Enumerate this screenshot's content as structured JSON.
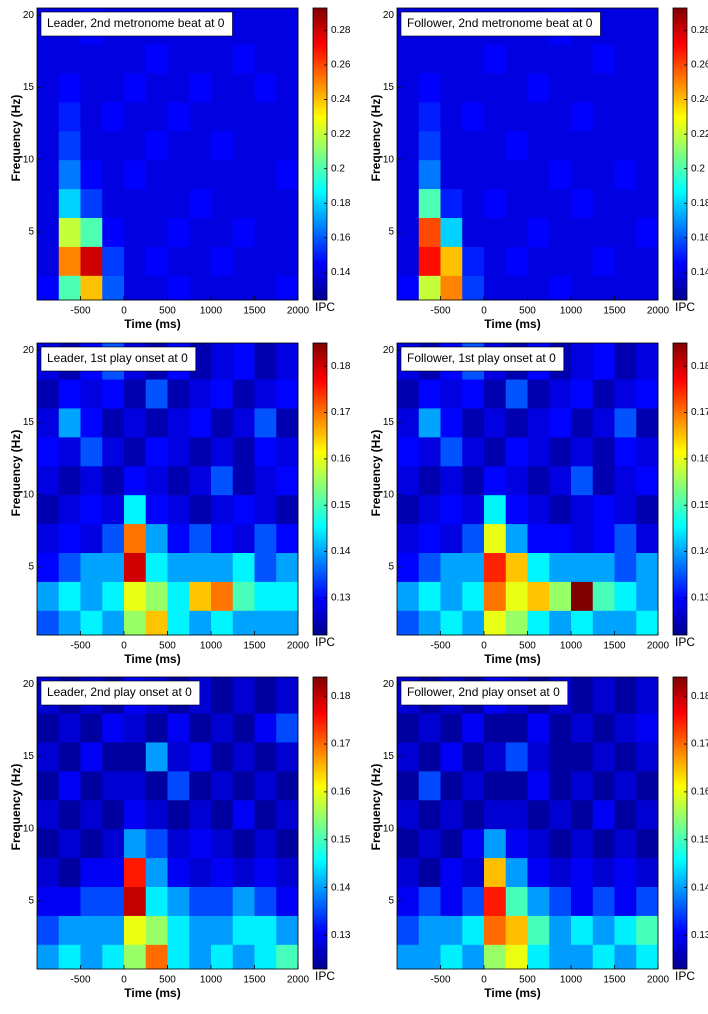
{
  "chart_data": [
    {
      "type": "heatmap",
      "title": "Leader, 2nd metronome beat at 0",
      "xlabel": "Time (ms)",
      "ylabel": "Frequency (Hz)",
      "colorbar_label": "IPC",
      "xlim": [
        -1000,
        2000
      ],
      "ylim": [
        0.3,
        20.5
      ],
      "xticks": [
        -500,
        0,
        500,
        1000,
        1500,
        2000
      ],
      "yticks": [
        5,
        10,
        15,
        20
      ],
      "clim": [
        0.124,
        0.293
      ],
      "cticks": [
        0.14,
        0.16,
        0.18,
        0.2,
        0.22,
        0.24,
        0.26,
        0.28
      ],
      "xbins": [
        -1000,
        -750,
        -500,
        -250,
        0,
        250,
        500,
        750,
        1000,
        1250,
        1500,
        1750,
        2000
      ],
      "ybins": [
        0.3,
        2,
        4,
        6,
        8,
        10,
        12,
        14,
        16,
        18,
        20.5
      ],
      "z": [
        [
          0.145,
          0.2,
          0.24,
          0.16,
          0.14,
          0.14,
          0.145,
          0.14,
          0.14,
          0.14,
          0.14,
          0.145
        ],
        [
          0.14,
          0.25,
          0.28,
          0.155,
          0.14,
          0.145,
          0.14,
          0.14,
          0.145,
          0.14,
          0.14,
          0.14
        ],
        [
          0.14,
          0.22,
          0.2,
          0.145,
          0.14,
          0.14,
          0.145,
          0.14,
          0.14,
          0.145,
          0.14,
          0.14
        ],
        [
          0.14,
          0.18,
          0.155,
          0.14,
          0.14,
          0.14,
          0.14,
          0.145,
          0.14,
          0.14,
          0.14,
          0.14
        ],
        [
          0.14,
          0.165,
          0.145,
          0.14,
          0.145,
          0.14,
          0.14,
          0.14,
          0.14,
          0.14,
          0.14,
          0.145
        ],
        [
          0.14,
          0.155,
          0.14,
          0.14,
          0.14,
          0.145,
          0.14,
          0.14,
          0.145,
          0.14,
          0.14,
          0.14
        ],
        [
          0.14,
          0.15,
          0.14,
          0.145,
          0.14,
          0.14,
          0.145,
          0.14,
          0.14,
          0.14,
          0.14,
          0.14
        ],
        [
          0.14,
          0.145,
          0.14,
          0.14,
          0.145,
          0.14,
          0.14,
          0.145,
          0.14,
          0.14,
          0.145,
          0.14
        ],
        [
          0.14,
          0.14,
          0.14,
          0.14,
          0.14,
          0.145,
          0.14,
          0.14,
          0.14,
          0.145,
          0.14,
          0.14
        ],
        [
          0.14,
          0.14,
          0.145,
          0.14,
          0.14,
          0.14,
          0.14,
          0.14,
          0.14,
          0.14,
          0.14,
          0.14
        ]
      ]
    },
    {
      "type": "heatmap",
      "title": "Follower, 2nd metronome beat at 0",
      "xlabel": "Time (ms)",
      "ylabel": "Frequency (Hz)",
      "colorbar_label": "IPC",
      "xlim": [
        -1000,
        2000
      ],
      "ylim": [
        0.3,
        20.5
      ],
      "xticks": [
        -500,
        0,
        500,
        1000,
        1500,
        2000
      ],
      "yticks": [
        5,
        10,
        15,
        20
      ],
      "clim": [
        0.124,
        0.293
      ],
      "cticks": [
        0.14,
        0.16,
        0.18,
        0.2,
        0.22,
        0.24,
        0.26,
        0.28
      ],
      "xbins": [
        -1000,
        -750,
        -500,
        -250,
        0,
        250,
        500,
        750,
        1000,
        1250,
        1500,
        1750,
        2000
      ],
      "ybins": [
        0.3,
        2,
        4,
        6,
        8,
        10,
        12,
        14,
        16,
        18,
        20.5
      ],
      "z": [
        [
          0.145,
          0.22,
          0.25,
          0.155,
          0.14,
          0.14,
          0.14,
          0.145,
          0.14,
          0.14,
          0.14,
          0.14
        ],
        [
          0.14,
          0.27,
          0.24,
          0.15,
          0.14,
          0.145,
          0.14,
          0.14,
          0.14,
          0.145,
          0.14,
          0.14
        ],
        [
          0.14,
          0.26,
          0.18,
          0.14,
          0.14,
          0.14,
          0.145,
          0.14,
          0.14,
          0.14,
          0.14,
          0.145
        ],
        [
          0.14,
          0.2,
          0.15,
          0.14,
          0.145,
          0.14,
          0.14,
          0.14,
          0.145,
          0.14,
          0.14,
          0.14
        ],
        [
          0.14,
          0.165,
          0.14,
          0.14,
          0.14,
          0.14,
          0.14,
          0.145,
          0.14,
          0.14,
          0.145,
          0.14
        ],
        [
          0.14,
          0.155,
          0.14,
          0.14,
          0.14,
          0.145,
          0.14,
          0.14,
          0.14,
          0.14,
          0.14,
          0.14
        ],
        [
          0.14,
          0.15,
          0.14,
          0.145,
          0.14,
          0.14,
          0.14,
          0.14,
          0.145,
          0.14,
          0.14,
          0.14
        ],
        [
          0.14,
          0.145,
          0.14,
          0.14,
          0.14,
          0.14,
          0.145,
          0.14,
          0.14,
          0.14,
          0.14,
          0.14
        ],
        [
          0.14,
          0.14,
          0.14,
          0.14,
          0.145,
          0.14,
          0.14,
          0.14,
          0.14,
          0.145,
          0.14,
          0.14
        ],
        [
          0.14,
          0.14,
          0.14,
          0.14,
          0.14,
          0.14,
          0.14,
          0.145,
          0.14,
          0.14,
          0.14,
          0.14
        ]
      ]
    },
    {
      "type": "heatmap",
      "title": "Leader, 1st play onset  at 0",
      "xlabel": "Time (ms)",
      "ylabel": "Frequency (Hz)",
      "colorbar_label": "IPC",
      "xlim": [
        -1000,
        2000
      ],
      "ylim": [
        0.3,
        20.5
      ],
      "xticks": [
        -500,
        0,
        500,
        1000,
        1500,
        2000
      ],
      "yticks": [
        5,
        10,
        15,
        20
      ],
      "clim": [
        0.122,
        0.185
      ],
      "cticks": [
        0.13,
        0.14,
        0.15,
        0.16,
        0.17,
        0.18
      ],
      "xbins": [
        -1000,
        -750,
        -500,
        -250,
        0,
        250,
        500,
        750,
        1000,
        1250,
        1500,
        1750,
        2000
      ],
      "ybins": [
        0.3,
        2,
        4,
        6,
        8,
        10,
        12,
        14,
        16,
        18,
        20.5
      ],
      "z": [
        [
          0.135,
          0.14,
          0.145,
          0.14,
          0.155,
          0.165,
          0.145,
          0.14,
          0.145,
          0.14,
          0.14,
          0.14
        ],
        [
          0.14,
          0.145,
          0.14,
          0.145,
          0.16,
          0.155,
          0.145,
          0.165,
          0.17,
          0.15,
          0.145,
          0.145
        ],
        [
          0.13,
          0.135,
          0.14,
          0.14,
          0.18,
          0.145,
          0.14,
          0.14,
          0.14,
          0.145,
          0.135,
          0.14
        ],
        [
          0.128,
          0.13,
          0.128,
          0.135,
          0.17,
          0.14,
          0.13,
          0.135,
          0.13,
          0.128,
          0.135,
          0.13
        ],
        [
          0.125,
          0.128,
          0.13,
          0.128,
          0.145,
          0.13,
          0.128,
          0.125,
          0.128,
          0.13,
          0.128,
          0.125
        ],
        [
          0.128,
          0.125,
          0.128,
          0.125,
          0.13,
          0.128,
          0.125,
          0.128,
          0.135,
          0.125,
          0.128,
          0.13
        ],
        [
          0.13,
          0.128,
          0.135,
          0.128,
          0.125,
          0.13,
          0.128,
          0.125,
          0.128,
          0.125,
          0.13,
          0.128
        ],
        [
          0.128,
          0.14,
          0.13,
          0.125,
          0.128,
          0.125,
          0.128,
          0.13,
          0.125,
          0.128,
          0.135,
          0.125
        ],
        [
          0.125,
          0.13,
          0.128,
          0.13,
          0.125,
          0.135,
          0.125,
          0.128,
          0.13,
          0.125,
          0.128,
          0.13
        ],
        [
          0.128,
          0.125,
          0.13,
          0.135,
          0.128,
          0.125,
          0.13,
          0.125,
          0.128,
          0.13,
          0.125,
          0.128
        ]
      ]
    },
    {
      "type": "heatmap",
      "title": "Follower, 1st play onset  at 0",
      "xlabel": "Time (ms)",
      "ylabel": "Frequency (Hz)",
      "colorbar_label": "IPC",
      "xlim": [
        -1000,
        2000
      ],
      "ylim": [
        0.3,
        20.5
      ],
      "xticks": [
        -500,
        0,
        500,
        1000,
        1500,
        2000
      ],
      "yticks": [
        5,
        10,
        15,
        20
      ],
      "clim": [
        0.122,
        0.185
      ],
      "cticks": [
        0.13,
        0.14,
        0.15,
        0.16,
        0.17,
        0.18
      ],
      "xbins": [
        -1000,
        -750,
        -500,
        -250,
        0,
        250,
        500,
        750,
        1000,
        1250,
        1500,
        1750,
        2000
      ],
      "ybins": [
        0.3,
        2,
        4,
        6,
        8,
        10,
        12,
        14,
        16,
        18,
        20.5
      ],
      "z": [
        [
          0.135,
          0.14,
          0.145,
          0.14,
          0.16,
          0.155,
          0.145,
          0.14,
          0.145,
          0.14,
          0.14,
          0.145
        ],
        [
          0.14,
          0.145,
          0.14,
          0.145,
          0.17,
          0.16,
          0.165,
          0.155,
          0.185,
          0.15,
          0.145,
          0.14
        ],
        [
          0.13,
          0.135,
          0.14,
          0.14,
          0.175,
          0.165,
          0.145,
          0.14,
          0.14,
          0.14,
          0.135,
          0.14
        ],
        [
          0.128,
          0.13,
          0.128,
          0.135,
          0.16,
          0.14,
          0.13,
          0.13,
          0.128,
          0.13,
          0.135,
          0.128
        ],
        [
          0.125,
          0.128,
          0.13,
          0.128,
          0.145,
          0.13,
          0.128,
          0.125,
          0.128,
          0.13,
          0.128,
          0.125
        ],
        [
          0.128,
          0.125,
          0.128,
          0.125,
          0.13,
          0.128,
          0.125,
          0.128,
          0.135,
          0.125,
          0.128,
          0.13
        ],
        [
          0.13,
          0.128,
          0.135,
          0.128,
          0.125,
          0.13,
          0.128,
          0.125,
          0.128,
          0.125,
          0.13,
          0.128
        ],
        [
          0.128,
          0.14,
          0.13,
          0.125,
          0.128,
          0.125,
          0.128,
          0.13,
          0.125,
          0.128,
          0.135,
          0.125
        ],
        [
          0.125,
          0.13,
          0.128,
          0.13,
          0.125,
          0.135,
          0.125,
          0.128,
          0.13,
          0.125,
          0.128,
          0.13
        ],
        [
          0.128,
          0.125,
          0.13,
          0.135,
          0.128,
          0.125,
          0.13,
          0.125,
          0.128,
          0.13,
          0.125,
          0.128
        ]
      ]
    },
    {
      "type": "heatmap",
      "title": "Leader, 2nd  play onset  at 0",
      "xlabel": "Time (ms)",
      "ylabel": "Frequency (Hz)",
      "colorbar_label": "IPC",
      "xlim": [
        -1000,
        2000
      ],
      "ylim": [
        0.3,
        20.5
      ],
      "xticks": [
        -500,
        0,
        500,
        1000,
        1500,
        2000
      ],
      "yticks": [
        5,
        10,
        15,
        20
      ],
      "clim": [
        0.123,
        0.184
      ],
      "cticks": [
        0.13,
        0.14,
        0.15,
        0.16,
        0.17,
        0.18
      ],
      "xbins": [
        -1000,
        -750,
        -500,
        -250,
        0,
        250,
        500,
        750,
        1000,
        1250,
        1500,
        1750,
        2000
      ],
      "ybins": [
        0.3,
        2,
        4,
        6,
        8,
        10,
        12,
        14,
        16,
        18,
        20.5
      ],
      "z": [
        [
          0.14,
          0.145,
          0.14,
          0.145,
          0.155,
          0.17,
          0.145,
          0.14,
          0.145,
          0.14,
          0.145,
          0.15
        ],
        [
          0.135,
          0.14,
          0.14,
          0.14,
          0.16,
          0.155,
          0.145,
          0.14,
          0.14,
          0.145,
          0.145,
          0.14
        ],
        [
          0.13,
          0.13,
          0.135,
          0.135,
          0.18,
          0.145,
          0.14,
          0.135,
          0.135,
          0.14,
          0.135,
          0.13
        ],
        [
          0.128,
          0.125,
          0.13,
          0.13,
          0.175,
          0.14,
          0.13,
          0.128,
          0.13,
          0.128,
          0.13,
          0.128
        ],
        [
          0.125,
          0.128,
          0.125,
          0.128,
          0.14,
          0.135,
          0.128,
          0.13,
          0.128,
          0.125,
          0.128,
          0.125
        ],
        [
          0.128,
          0.125,
          0.128,
          0.125,
          0.13,
          0.128,
          0.125,
          0.128,
          0.125,
          0.13,
          0.125,
          0.128
        ],
        [
          0.125,
          0.13,
          0.125,
          0.128,
          0.128,
          0.125,
          0.135,
          0.125,
          0.128,
          0.125,
          0.128,
          0.125
        ],
        [
          0.128,
          0.125,
          0.13,
          0.125,
          0.125,
          0.14,
          0.128,
          0.13,
          0.125,
          0.128,
          0.125,
          0.128
        ],
        [
          0.125,
          0.128,
          0.125,
          0.13,
          0.128,
          0.125,
          0.13,
          0.125,
          0.128,
          0.125,
          0.13,
          0.135
        ],
        [
          0.128,
          0.125,
          0.128,
          0.125,
          0.13,
          0.128,
          0.125,
          0.128,
          0.125,
          0.128,
          0.125,
          0.128
        ]
      ]
    },
    {
      "type": "heatmap",
      "title": "Follower, 2nd  play onset  at 0",
      "xlabel": "Time (ms)",
      "ylabel": "Frequency (Hz)",
      "colorbar_label": "IPC",
      "xlim": [
        -1000,
        2000
      ],
      "ylim": [
        0.3,
        20.5
      ],
      "xticks": [
        -500,
        0,
        500,
        1000,
        1500,
        2000
      ],
      "yticks": [
        5,
        10,
        15,
        20
      ],
      "clim": [
        0.123,
        0.184
      ],
      "cticks": [
        0.13,
        0.14,
        0.15,
        0.16,
        0.17,
        0.18
      ],
      "xbins": [
        -1000,
        -750,
        -500,
        -250,
        0,
        250,
        500,
        750,
        1000,
        1250,
        1500,
        1750,
        2000
      ],
      "ybins": [
        0.3,
        2,
        4,
        6,
        8,
        10,
        12,
        14,
        16,
        18,
        20.5
      ],
      "z": [
        [
          0.14,
          0.14,
          0.145,
          0.14,
          0.155,
          0.16,
          0.145,
          0.14,
          0.14,
          0.145,
          0.14,
          0.145
        ],
        [
          0.135,
          0.14,
          0.14,
          0.145,
          0.17,
          0.165,
          0.15,
          0.14,
          0.145,
          0.14,
          0.145,
          0.15
        ],
        [
          0.13,
          0.135,
          0.13,
          0.135,
          0.175,
          0.15,
          0.14,
          0.135,
          0.13,
          0.135,
          0.13,
          0.135
        ],
        [
          0.128,
          0.125,
          0.13,
          0.128,
          0.165,
          0.14,
          0.13,
          0.128,
          0.13,
          0.128,
          0.13,
          0.128
        ],
        [
          0.125,
          0.128,
          0.125,
          0.13,
          0.14,
          0.13,
          0.128,
          0.125,
          0.128,
          0.125,
          0.128,
          0.125
        ],
        [
          0.128,
          0.125,
          0.128,
          0.125,
          0.128,
          0.128,
          0.125,
          0.128,
          0.125,
          0.13,
          0.125,
          0.128
        ],
        [
          0.125,
          0.135,
          0.125,
          0.128,
          0.125,
          0.125,
          0.13,
          0.125,
          0.128,
          0.125,
          0.128,
          0.125
        ],
        [
          0.128,
          0.125,
          0.13,
          0.125,
          0.128,
          0.135,
          0.128,
          0.125,
          0.125,
          0.128,
          0.125,
          0.128
        ],
        [
          0.125,
          0.128,
          0.125,
          0.13,
          0.125,
          0.125,
          0.13,
          0.125,
          0.128,
          0.125,
          0.128,
          0.13
        ],
        [
          0.128,
          0.125,
          0.128,
          0.125,
          0.13,
          0.128,
          0.125,
          0.128,
          0.125,
          0.128,
          0.125,
          0.128
        ]
      ]
    }
  ]
}
